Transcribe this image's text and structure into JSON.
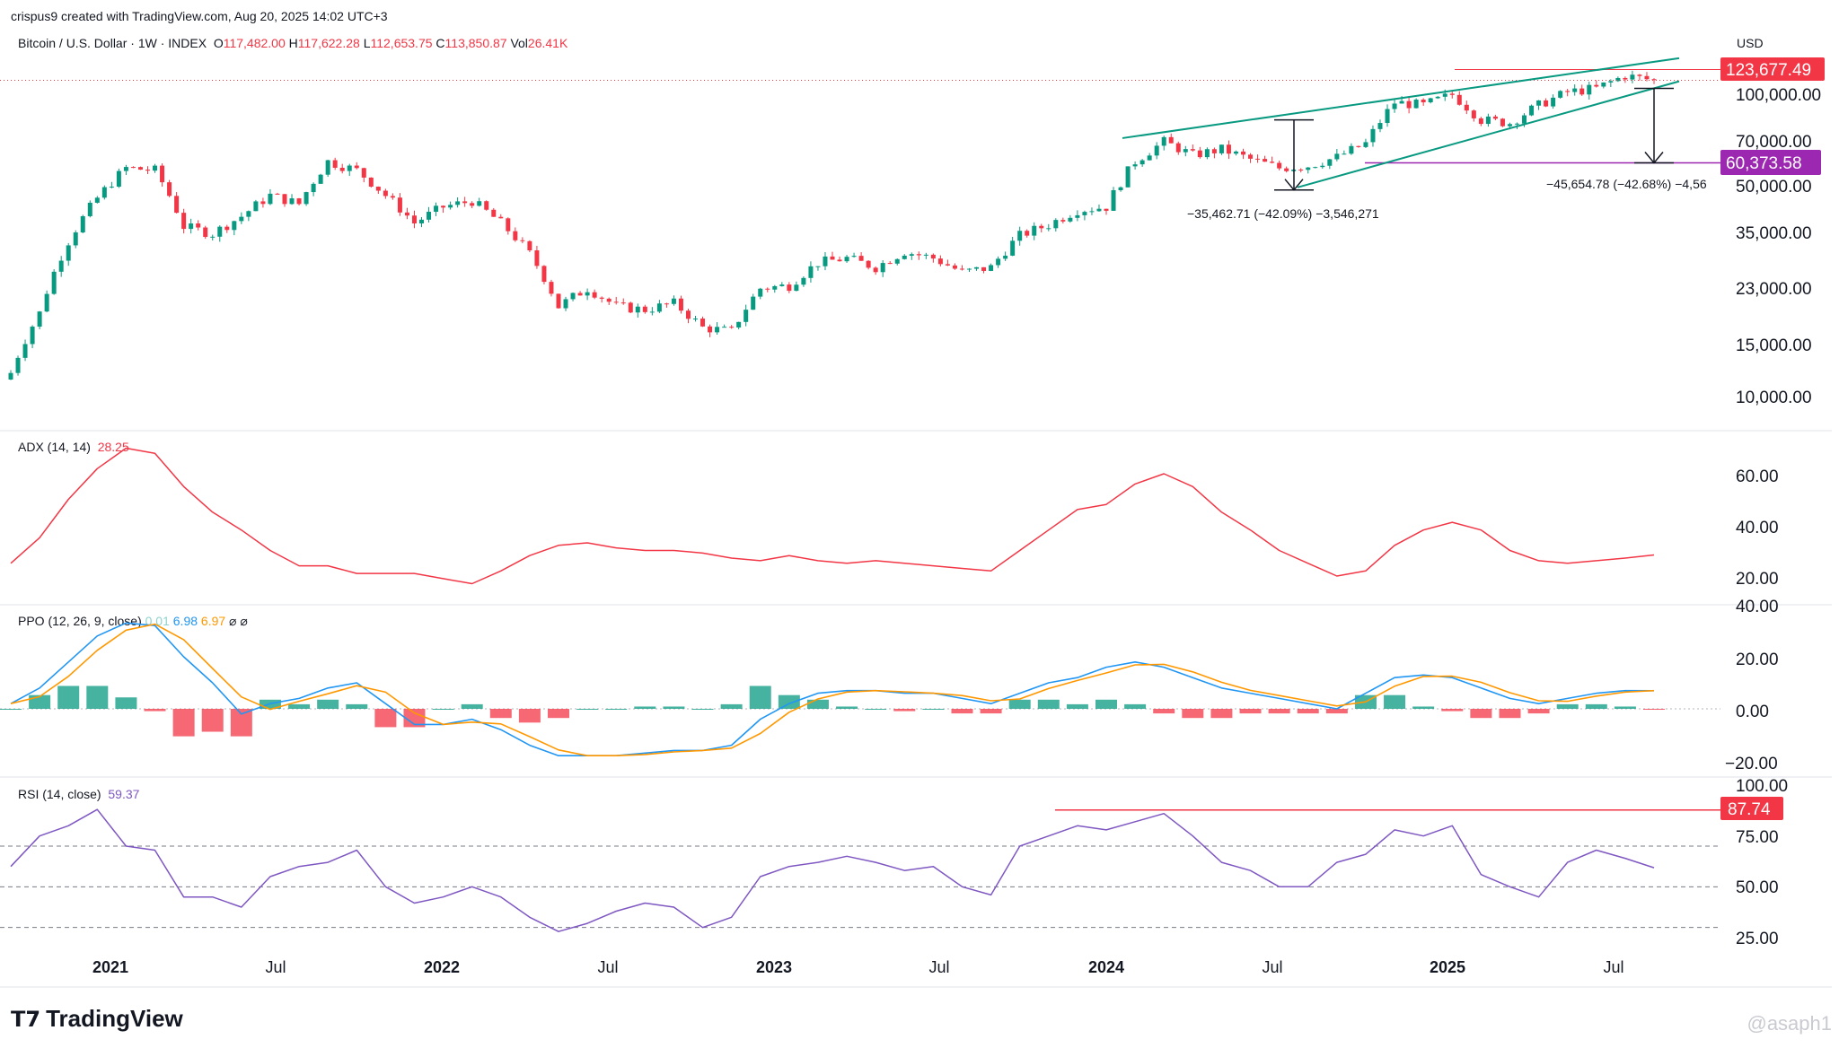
{
  "header": {
    "credit": "crispus9 created with TradingView.com, Aug 20, 2025 14:02 UTC+3"
  },
  "price_legend": {
    "symbol": "Bitcoin / U.S. Dollar · 1W · INDEX",
    "o_label": "O",
    "o": "117,482.00",
    "h_label": "H",
    "h": "117,622.28",
    "l_label": "L",
    "l": "112,653.75",
    "c_label": "C",
    "c": "113,850.87",
    "vol_label": "Vol",
    "vol": "26.41K"
  },
  "currency": "USD",
  "adx_legend": {
    "name": "ADX (14, 14)",
    "value": "28.25"
  },
  "ppo_legend": {
    "name": "PPO (12, 26, 9, close)",
    "hist": "0.01",
    "ppo": "6.98",
    "signal": "6.97",
    "sym1": "⌀",
    "sym2": "⌀"
  },
  "rsi_legend": {
    "name": "RSI (14, close)",
    "value": "59.37"
  },
  "price_axis": [
    "100,000.00",
    "70,000.00",
    "50,000.00",
    "35,000.00",
    "23,000.00",
    "15,000.00",
    "10,000.00"
  ],
  "adx_axis": [
    "60.00",
    "40.00",
    "20.00"
  ],
  "ppo_axis": [
    "40.00",
    "20.00",
    "0.00",
    "−20.00"
  ],
  "rsi_axis": [
    "100.00",
    "75.00",
    "50.00",
    "25.00"
  ],
  "badges": {
    "last_price": "123,677.49",
    "target": "60,373.58",
    "rsi_high": "87.74"
  },
  "annotations": {
    "drop_1": "−35,462.71 (−42.09%) −3,546,271",
    "drop_2": "−45,654.78 (−42.68%) −4,56"
  },
  "x_axis": [
    {
      "label": "2021",
      "bold": true
    },
    {
      "label": "Jul",
      "bold": false
    },
    {
      "label": "2022",
      "bold": true
    },
    {
      "label": "Jul",
      "bold": false
    },
    {
      "label": "2023",
      "bold": true
    },
    {
      "label": "Jul",
      "bold": false
    },
    {
      "label": "2024",
      "bold": true
    },
    {
      "label": "Jul",
      "bold": false
    },
    {
      "label": "2025",
      "bold": true
    },
    {
      "label": "Jul",
      "bold": false
    }
  ],
  "logo": "TradingView",
  "watermark": "@asaph1",
  "colors": {
    "up": "#089981",
    "down": "#f23645",
    "ppo": "#2196f3",
    "signal": "#ff9800",
    "rsi": "#7e57c2",
    "adx": "#f23645",
    "channel": "#089981",
    "target": "#9c27b0"
  },
  "chart_data": {
    "type": "line",
    "x": [
      "2020-11",
      "2020-12",
      "2021-01",
      "2021-02",
      "2021-03",
      "2021-04",
      "2021-05",
      "2021-06",
      "2021-07",
      "2021-08",
      "2021-09",
      "2021-10",
      "2021-11",
      "2021-12",
      "2022-01",
      "2022-02",
      "2022-03",
      "2022-04",
      "2022-05",
      "2022-06",
      "2022-07",
      "2022-08",
      "2022-09",
      "2022-10",
      "2022-11",
      "2022-12",
      "2023-01",
      "2023-02",
      "2023-03",
      "2023-04",
      "2023-05",
      "2023-06",
      "2023-07",
      "2023-08",
      "2023-09",
      "2023-10",
      "2023-11",
      "2023-12",
      "2024-01",
      "2024-02",
      "2024-03",
      "2024-04",
      "2024-05",
      "2024-06",
      "2024-07",
      "2024-08",
      "2024-09",
      "2024-10",
      "2024-11",
      "2024-12",
      "2025-01",
      "2025-02",
      "2025-03",
      "2025-04",
      "2025-05",
      "2025-06",
      "2025-07",
      "2025-08"
    ],
    "series": [
      {
        "name": "Bitcoin / U.S. Dollar",
        "values": [
          12000,
          19000,
          33000,
          46000,
          58000,
          57000,
          37000,
          35000,
          40000,
          47000,
          44000,
          61000,
          57000,
          47000,
          38000,
          43000,
          45000,
          38000,
          30000,
          20000,
          23000,
          20000,
          19500,
          20500,
          17000,
          16500,
          23000,
          23500,
          28000,
          29000,
          27000,
          30500,
          29000,
          26000,
          27000,
          34500,
          37500,
          42000,
          43000,
          61000,
          71000,
          64000,
          67000,
          62000,
          58000,
          59000,
          63000,
          70000,
          96000,
          94000,
          102000,
          84000,
          82000,
          94000,
          104000,
          107000,
          118000,
          113800
        ]
      },
      {
        "name": "ADX (14, 14)",
        "values": [
          25,
          35,
          50,
          62,
          70,
          68,
          55,
          45,
          38,
          30,
          24,
          24,
          21,
          21,
          21,
          19,
          17,
          22,
          28,
          32,
          33,
          31,
          30,
          30,
          29,
          27,
          26,
          28,
          26,
          25,
          26,
          25,
          24,
          23,
          22,
          30,
          38,
          46,
          48,
          56,
          60,
          55,
          45,
          38,
          30,
          25,
          20,
          22,
          32,
          38,
          41,
          38,
          30,
          26,
          25,
          26,
          27,
          28.25
        ]
      },
      {
        "name": "RSI (14, close)",
        "values": [
          60,
          75,
          80,
          88,
          70,
          68,
          45,
          45,
          40,
          55,
          60,
          62,
          68,
          50,
          42,
          45,
          50,
          45,
          35,
          28,
          32,
          38,
          42,
          40,
          30,
          35,
          55,
          60,
          62,
          65,
          62,
          58,
          60,
          50,
          46,
          70,
          75,
          80,
          78,
          82,
          86,
          75,
          62,
          58,
          50,
          50,
          62,
          66,
          78,
          75,
          80,
          56,
          50,
          45,
          62,
          68,
          64,
          59.37
        ]
      },
      {
        "name": "PPO (12, 26, 9, close)",
        "values": [
          2,
          8,
          18,
          28,
          33,
          32,
          20,
          10,
          -2,
          2,
          4,
          8,
          10,
          2,
          -6,
          -6,
          -4,
          -8,
          -14,
          -18,
          -18,
          -18,
          -17,
          -16,
          -16,
          -14,
          -4,
          2,
          6,
          7,
          7,
          6,
          6,
          4,
          2,
          6,
          10,
          12,
          16,
          18,
          16,
          12,
          8,
          6,
          4,
          2,
          0,
          6,
          12,
          13,
          12,
          8,
          4,
          2,
          4,
          6,
          7,
          6.98
        ]
      }
    ],
    "horizontal_levels": {
      "last_price": 123677.49,
      "target": 60373.58,
      "rsi_high": 87.74
    },
    "measured_moves": [
      {
        "change": -35462.71,
        "percent": -42.09
      },
      {
        "change": -45654.78,
        "percent": -42.68
      }
    ]
  }
}
